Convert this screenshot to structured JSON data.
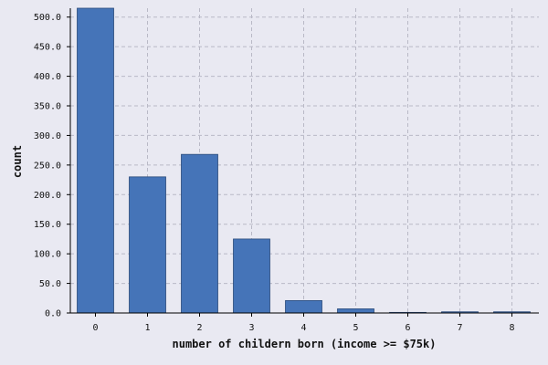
{
  "chart_data": {
    "type": "bar",
    "categories": [
      "0",
      "1",
      "2",
      "3",
      "4",
      "5",
      "6",
      "7",
      "8"
    ],
    "values": [
      515,
      230,
      268,
      125,
      21,
      7,
      1,
      2,
      2
    ],
    "xlabel": "number of childern born (income >= $75k)",
    "ylabel": "count",
    "ylim": [
      0,
      515
    ],
    "yticks": [
      "0.0",
      "50.0",
      "100.0",
      "150.0",
      "200.0",
      "250.0",
      "300.0",
      "350.0",
      "400.0",
      "450.0",
      "500.0"
    ],
    "ytick_values": [
      0,
      50,
      100,
      150,
      200,
      250,
      300,
      350,
      400,
      450,
      500
    ],
    "grid": true,
    "bar_color": "#4574b8"
  }
}
